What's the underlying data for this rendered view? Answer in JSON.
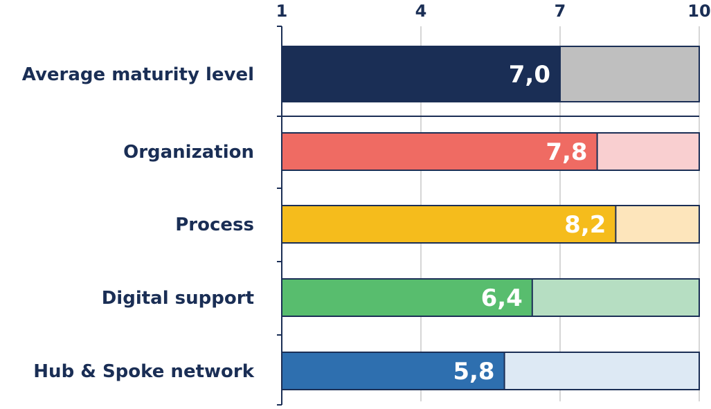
{
  "chart_data": {
    "type": "bar",
    "orientation": "horizontal",
    "xlim": [
      1,
      10
    ],
    "xticks": [
      "1",
      "4",
      "7",
      "10"
    ],
    "grid": true,
    "categories": [
      "Average maturity level",
      "Organization",
      "Process",
      "Digital support",
      "Hub & Spoke network"
    ],
    "values": [
      7.0,
      7.8,
      8.2,
      6.4,
      5.8
    ],
    "value_labels": [
      "7,0",
      "7,8",
      "8,2",
      "6,4",
      "5,8"
    ],
    "colors": [
      "#1a2e55",
      "#ef6b63",
      "#f5bc1c",
      "#58bd6e",
      "#2e6faf"
    ],
    "remainder_colors": [
      "#bfbfbf",
      "#f9cfd0",
      "#fde5bb",
      "#b6dec2",
      "#dde9f4"
    ]
  }
}
